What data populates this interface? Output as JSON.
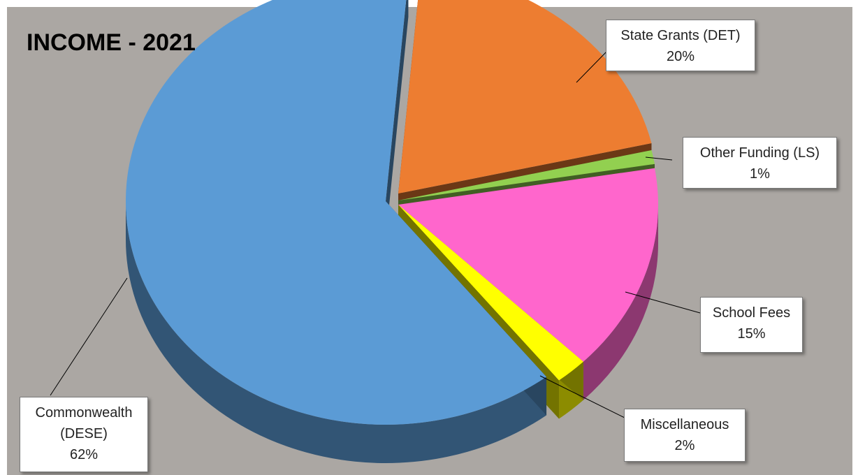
{
  "chart_data": {
    "type": "pie",
    "style": "3d-exploded",
    "title": "INCOME - 2021",
    "slices": [
      {
        "label": "State Grants (DET)",
        "percent_label": "20%",
        "value": 20,
        "color": "#ED7D31"
      },
      {
        "label": "Other Funding (LS)",
        "percent_label": "1%",
        "value": 1,
        "color": "#92D050"
      },
      {
        "label": "School Fees",
        "percent_label": "15%",
        "value": 15,
        "color": "#FF66CC"
      },
      {
        "label": "Miscellaneous",
        "percent_label": "2%",
        "value": 2,
        "color": "#FFFF00"
      },
      {
        "label": "Commonwealth (DESE)",
        "label_lines": [
          "Commonwealth",
          "(DESE)"
        ],
        "percent_label": "62%",
        "value": 62,
        "color": "#5B9BD5"
      }
    ],
    "plot_background": "#ABA7A3",
    "legend": "none"
  }
}
